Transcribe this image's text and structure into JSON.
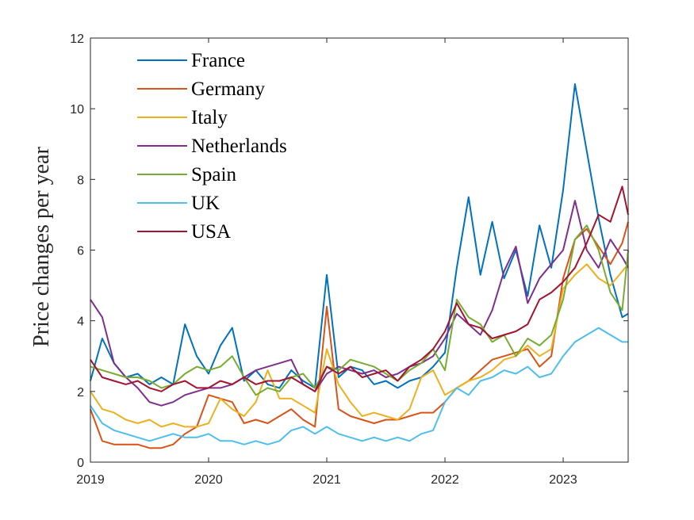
{
  "chart_data": {
    "type": "line",
    "title": "",
    "xlabel": "",
    "ylabel": "Price changes per year",
    "xlim": [
      2019,
      2023.55
    ],
    "ylim": [
      0,
      12
    ],
    "xticks": [
      2019,
      2020,
      2021,
      2022,
      2023
    ],
    "xtick_labels": [
      "2019",
      "2020",
      "2021",
      "2022",
      "2023"
    ],
    "yticks": [
      0,
      2,
      4,
      6,
      8,
      10,
      12
    ],
    "ytick_labels": [
      "0",
      "2",
      "4",
      "6",
      "8",
      "10",
      "12"
    ],
    "grid": false,
    "legend_position": "top-left",
    "x": [
      2019.0,
      2019.1,
      2019.2,
      2019.3,
      2019.4,
      2019.5,
      2019.6,
      2019.7,
      2019.8,
      2019.9,
      2020.0,
      2020.1,
      2020.2,
      2020.3,
      2020.4,
      2020.5,
      2020.6,
      2020.7,
      2020.8,
      2020.9,
      2021.0,
      2021.1,
      2021.2,
      2021.3,
      2021.4,
      2021.5,
      2021.6,
      2021.7,
      2021.8,
      2021.9,
      2022.0,
      2022.1,
      2022.2,
      2022.3,
      2022.4,
      2022.5,
      2022.6,
      2022.7,
      2022.8,
      2022.9,
      2023.0,
      2023.1,
      2023.2,
      2023.3,
      2023.4,
      2023.5,
      2023.55
    ],
    "series": [
      {
        "name": "France",
        "color": "#0072BD",
        "values": [
          2.3,
          3.5,
          2.8,
          2.4,
          2.5,
          2.2,
          2.4,
          2.2,
          3.9,
          3.0,
          2.5,
          3.3,
          3.8,
          2.3,
          2.6,
          2.2,
          2.1,
          2.6,
          2.3,
          2.1,
          5.3,
          2.4,
          2.7,
          2.6,
          2.2,
          2.3,
          2.1,
          2.3,
          2.4,
          2.7,
          3.1,
          5.5,
          7.5,
          5.3,
          6.8,
          5.2,
          6.0,
          4.7,
          6.7,
          5.5,
          7.7,
          10.7,
          8.8,
          6.9,
          5.3,
          4.1,
          4.2
        ]
      },
      {
        "name": "Germany",
        "color": "#D95319",
        "values": [
          1.5,
          0.6,
          0.5,
          0.5,
          0.5,
          0.4,
          0.4,
          0.5,
          0.8,
          1.0,
          1.9,
          1.8,
          1.7,
          1.1,
          1.2,
          1.1,
          1.3,
          1.5,
          1.2,
          1.0,
          4.4,
          1.5,
          1.3,
          1.2,
          1.1,
          1.2,
          1.2,
          1.3,
          1.4,
          1.4,
          1.7,
          2.1,
          2.3,
          2.6,
          2.9,
          3.0,
          3.1,
          3.2,
          2.7,
          3.0,
          5.2,
          6.3,
          6.6,
          6.1,
          5.6,
          6.2,
          6.8
        ]
      },
      {
        "name": "Italy",
        "color": "#EDB120",
        "values": [
          2.0,
          1.5,
          1.4,
          1.2,
          1.1,
          1.2,
          1.0,
          1.1,
          1.0,
          1.0,
          1.1,
          1.8,
          1.5,
          1.3,
          1.7,
          2.6,
          1.8,
          1.8,
          1.6,
          1.4,
          3.2,
          2.2,
          1.7,
          1.3,
          1.4,
          1.3,
          1.2,
          1.5,
          2.4,
          2.6,
          1.9,
          2.1,
          2.3,
          2.4,
          2.6,
          2.9,
          3.0,
          3.3,
          3.0,
          3.2,
          4.9,
          5.3,
          5.6,
          5.2,
          5.0,
          5.4,
          5.6
        ]
      },
      {
        "name": "Netherlands",
        "color": "#7E2F8E",
        "values": [
          4.6,
          4.1,
          2.8,
          2.4,
          2.1,
          1.7,
          1.6,
          1.7,
          1.9,
          2.0,
          2.1,
          2.1,
          2.2,
          2.4,
          2.6,
          2.7,
          2.8,
          2.9,
          2.2,
          2.0,
          2.5,
          2.7,
          2.6,
          2.5,
          2.6,
          2.4,
          2.5,
          2.7,
          2.8,
          3.0,
          3.5,
          4.2,
          3.9,
          3.6,
          4.3,
          5.4,
          6.1,
          4.5,
          5.2,
          5.6,
          6.0,
          7.4,
          6.0,
          5.5,
          6.3,
          5.8,
          5.5
        ]
      },
      {
        "name": "Spain",
        "color": "#77AC30",
        "values": [
          2.7,
          2.6,
          2.5,
          2.4,
          2.4,
          2.3,
          2.1,
          2.2,
          2.5,
          2.7,
          2.6,
          2.7,
          3.0,
          2.4,
          1.9,
          2.1,
          2.0,
          2.4,
          2.5,
          2.1,
          2.7,
          2.6,
          2.9,
          2.8,
          2.7,
          2.5,
          2.3,
          2.6,
          2.8,
          3.2,
          2.6,
          4.6,
          4.1,
          3.9,
          3.4,
          3.6,
          3.0,
          3.5,
          3.3,
          3.6,
          4.6,
          6.3,
          6.7,
          6.0,
          4.8,
          4.3,
          6.0
        ]
      },
      {
        "name": "UK",
        "color": "#4DBEEE",
        "values": [
          1.6,
          1.1,
          0.9,
          0.8,
          0.7,
          0.6,
          0.7,
          0.8,
          0.7,
          0.7,
          0.8,
          0.6,
          0.6,
          0.5,
          0.6,
          0.5,
          0.6,
          0.9,
          1.0,
          0.8,
          1.0,
          0.8,
          0.7,
          0.6,
          0.7,
          0.6,
          0.7,
          0.6,
          0.8,
          0.9,
          1.7,
          2.1,
          1.9,
          2.3,
          2.4,
          2.6,
          2.5,
          2.7,
          2.4,
          2.5,
          3.0,
          3.4,
          3.6,
          3.8,
          3.6,
          3.4,
          3.4
        ]
      },
      {
        "name": "USA",
        "color": "#A2142F",
        "values": [
          2.9,
          2.4,
          2.3,
          2.2,
          2.3,
          2.1,
          2.0,
          2.2,
          2.3,
          2.1,
          2.1,
          2.3,
          2.2,
          2.4,
          2.2,
          2.3,
          2.3,
          2.4,
          2.2,
          2.0,
          2.7,
          2.5,
          2.7,
          2.4,
          2.5,
          2.6,
          2.3,
          2.7,
          2.9,
          3.2,
          3.7,
          4.5,
          3.9,
          3.8,
          3.5,
          3.6,
          3.7,
          3.9,
          4.6,
          4.8,
          5.1,
          5.5,
          6.2,
          7.0,
          6.8,
          7.8,
          7.0
        ]
      }
    ]
  }
}
